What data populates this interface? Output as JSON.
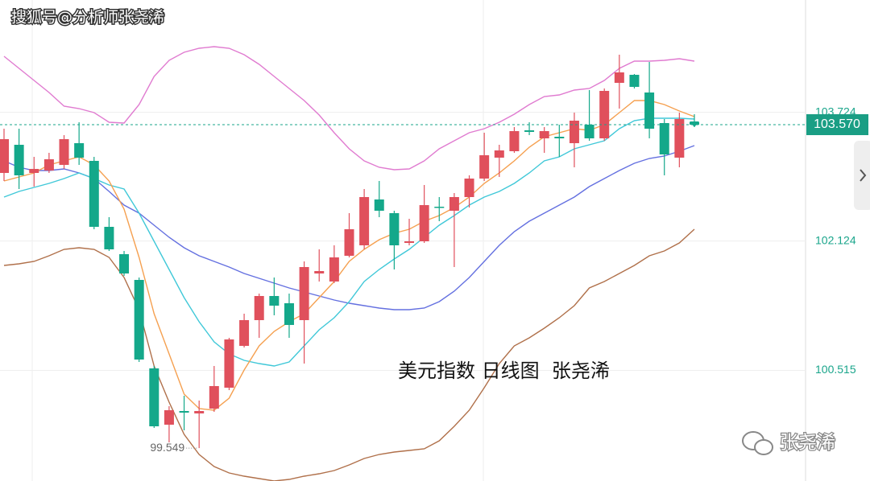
{
  "chart_data": {
    "type": "candlestick",
    "watermark": "搜狐号@分析师张尧浠",
    "title": "美元指数 日线图  张尧浠",
    "source": "张尧浠",
    "ylim": [
      99.14,
      105.12
    ],
    "yticks": [
      103.724,
      102.124,
      100.515
    ],
    "up_color": "#e0505c",
    "down_color": "#14a88a",
    "last_price": {
      "value": 103.57,
      "label": "103.570"
    },
    "open": [
      102.97,
      103.32,
      102.97,
      103.0,
      103.07,
      103.34,
      103.12,
      102.3,
      101.96,
      101.64,
      100.54,
      99.84,
      100.01,
      99.98,
      100.04,
      100.3,
      100.82,
      101.14,
      101.44,
      101.35,
      101.14,
      101.72,
      101.62,
      101.94,
      102.07,
      102.64,
      102.47,
      102.1,
      102.12,
      102.55,
      102.5,
      102.67,
      102.9,
      103.16,
      103.24,
      103.5,
      103.4,
      103.42,
      103.34,
      103.57,
      103.4,
      104.09,
      104.19,
      103.97,
      103.59,
      103.16,
      103.6
    ],
    "high": [
      103.52,
      103.52,
      103.17,
      103.22,
      103.44,
      103.6,
      103.17,
      102.42,
      102.0,
      101.67,
      100.57,
      100.07,
      100.2,
      100.14,
      100.57,
      100.92,
      101.22,
      101.47,
      101.67,
      101.47,
      101.87,
      102.02,
      102.07,
      102.47,
      102.77,
      102.87,
      102.5,
      102.4,
      102.82,
      102.67,
      102.72,
      102.94,
      103.47,
      103.32,
      103.54,
      103.6,
      103.54,
      103.57,
      103.72,
      104.0,
      104.02,
      104.44,
      104.2,
      104.35,
      103.64,
      103.72,
      103.7
    ],
    "low": [
      102.87,
      102.77,
      102.8,
      102.97,
      103.02,
      103.07,
      102.27,
      102.0,
      101.69,
      100.62,
      99.8,
      99.62,
      99.77,
      99.549,
      100.0,
      100.27,
      100.8,
      100.92,
      101.2,
      100.92,
      100.6,
      101.62,
      101.6,
      101.92,
      102.02,
      102.42,
      101.77,
      102.07,
      102.1,
      102.37,
      101.8,
      102.54,
      102.87,
      102.92,
      103.22,
      103.44,
      103.22,
      103.17,
      103.04,
      103.37,
      103.37,
      103.77,
      104.02,
      103.4,
      102.94,
      103.04,
      103.54
    ],
    "close": [
      103.39,
      102.94,
      103.02,
      103.14,
      103.39,
      103.16,
      102.3,
      102.02,
      101.72,
      100.65,
      99.82,
      100.02,
      99.99,
      100.01,
      100.32,
      100.9,
      101.14,
      101.44,
      101.32,
      101.08,
      101.8,
      101.75,
      101.92,
      102.27,
      102.67,
      102.5,
      102.07,
      102.12,
      102.57,
      102.54,
      102.67,
      102.9,
      103.19,
      103.25,
      103.49,
      103.48,
      103.49,
      103.4,
      103.62,
      103.4,
      103.99,
      104.22,
      104.04,
      103.52,
      103.2,
      103.64,
      103.57
    ],
    "lines": [
      {
        "color": "#e07bd0",
        "values": [
          104.42,
          104.27,
          104.12,
          103.97,
          103.8,
          103.77,
          103.72,
          103.6,
          103.59,
          103.82,
          104.17,
          104.37,
          104.47,
          104.52,
          104.54,
          104.52,
          104.44,
          104.32,
          104.17,
          104.02,
          103.87,
          103.69,
          103.47,
          103.27,
          103.12,
          103.04,
          103.01,
          103.02,
          103.12,
          103.27,
          103.37,
          103.47,
          103.52,
          103.6,
          103.7,
          103.82,
          103.92,
          103.94,
          104.0,
          104.02,
          104.12,
          104.27,
          104.36,
          104.36,
          104.37,
          104.39,
          104.36
        ]
      },
      {
        "color": "#b0704a",
        "values": [
          101.82,
          101.84,
          101.87,
          101.94,
          102.02,
          102.04,
          102.02,
          101.92,
          101.67,
          101.27,
          100.57,
          100.12,
          99.72,
          99.47,
          99.32,
          99.24,
          99.2,
          99.17,
          99.14,
          99.16,
          99.2,
          99.23,
          99.27,
          99.34,
          99.42,
          99.47,
          99.5,
          99.52,
          99.54,
          99.64,
          99.82,
          100.02,
          100.3,
          100.6,
          100.82,
          100.92,
          101.04,
          101.17,
          101.32,
          101.54,
          101.62,
          101.72,
          101.82,
          101.94,
          102.0,
          102.1,
          102.27
        ]
      },
      {
        "color": "#6470e0",
        "values": [
          103.12,
          103.04,
          103.0,
          103.0,
          103.02,
          102.97,
          102.9,
          102.74,
          102.57,
          102.47,
          102.32,
          102.17,
          102.04,
          101.94,
          101.87,
          101.8,
          101.72,
          101.66,
          101.6,
          101.54,
          101.49,
          101.44,
          101.39,
          101.35,
          101.32,
          101.29,
          101.27,
          101.27,
          101.29,
          101.37,
          101.5,
          101.67,
          101.87,
          102.07,
          102.24,
          102.37,
          102.47,
          102.57,
          102.67,
          102.8,
          102.9,
          103.0,
          103.09,
          103.15,
          103.18,
          103.24,
          103.31
        ]
      },
      {
        "color": "#40c8d8",
        "values": [
          102.67,
          102.74,
          102.79,
          102.84,
          102.9,
          102.97,
          102.9,
          102.82,
          102.77,
          102.47,
          102.12,
          101.77,
          101.42,
          101.12,
          100.87,
          100.72,
          100.64,
          100.6,
          100.57,
          100.62,
          100.82,
          101.02,
          101.17,
          101.37,
          101.62,
          101.77,
          101.9,
          102.02,
          102.17,
          102.32,
          102.44,
          102.57,
          102.67,
          102.74,
          102.84,
          102.97,
          103.12,
          103.17,
          103.27,
          103.32,
          103.37,
          103.52,
          103.62,
          103.65,
          103.65,
          103.65,
          103.64
        ]
      },
      {
        "color": "#f5a050",
        "values": [
          102.87,
          102.92,
          102.97,
          103.07,
          103.12,
          103.17,
          103.07,
          102.87,
          102.52,
          101.92,
          101.22,
          100.72,
          100.22,
          100.04,
          100.02,
          100.17,
          100.52,
          100.82,
          101.0,
          101.12,
          101.22,
          101.42,
          101.62,
          101.87,
          102.02,
          102.14,
          102.22,
          102.27,
          102.37,
          102.44,
          102.54,
          102.67,
          102.84,
          102.97,
          103.12,
          103.29,
          103.42,
          103.47,
          103.52,
          103.5,
          103.57,
          103.72,
          103.87,
          103.87,
          103.82,
          103.74,
          103.67
        ]
      }
    ]
  }
}
